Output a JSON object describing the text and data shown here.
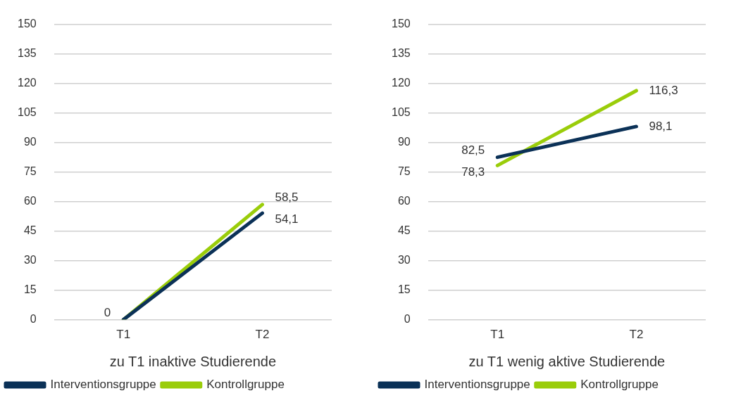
{
  "chart_data": [
    {
      "type": "line",
      "xlabel": "zu T1 inaktive Studierende",
      "categories": [
        "T1",
        "T2"
      ],
      "ylim": [
        0,
        150
      ],
      "yticks": [
        0,
        15,
        30,
        45,
        60,
        75,
        90,
        105,
        120,
        135,
        150
      ],
      "grid": "y",
      "legend": "bottom",
      "marker": "none",
      "line_style": "solid",
      "series": [
        {
          "name": "Interventionsgruppe",
          "color": "#0b3157",
          "values": [
            0,
            54.1
          ],
          "value_labels": [
            "0",
            "54,1"
          ]
        },
        {
          "name": "Kontrollgruppe",
          "color": "#9acd0a",
          "values": [
            0,
            58.5
          ],
          "value_labels": [
            null,
            "58,5"
          ]
        }
      ]
    },
    {
      "type": "line",
      "xlabel": "zu T1 wenig aktive Studierende",
      "categories": [
        "T1",
        "T2"
      ],
      "ylim": [
        0,
        150
      ],
      "yticks": [
        0,
        15,
        30,
        45,
        60,
        75,
        90,
        105,
        120,
        135,
        150
      ],
      "grid": "y",
      "legend": "bottom",
      "marker": "none",
      "line_style": "solid",
      "series": [
        {
          "name": "Interventionsgruppe",
          "color": "#0b3157",
          "values": [
            82.5,
            98.1
          ],
          "value_labels": [
            "82,5",
            "98,1"
          ]
        },
        {
          "name": "Kontrollgruppe",
          "color": "#9acd0a",
          "values": [
            78.3,
            116.3
          ],
          "value_labels": [
            "78,3",
            "116,3"
          ]
        }
      ]
    }
  ]
}
